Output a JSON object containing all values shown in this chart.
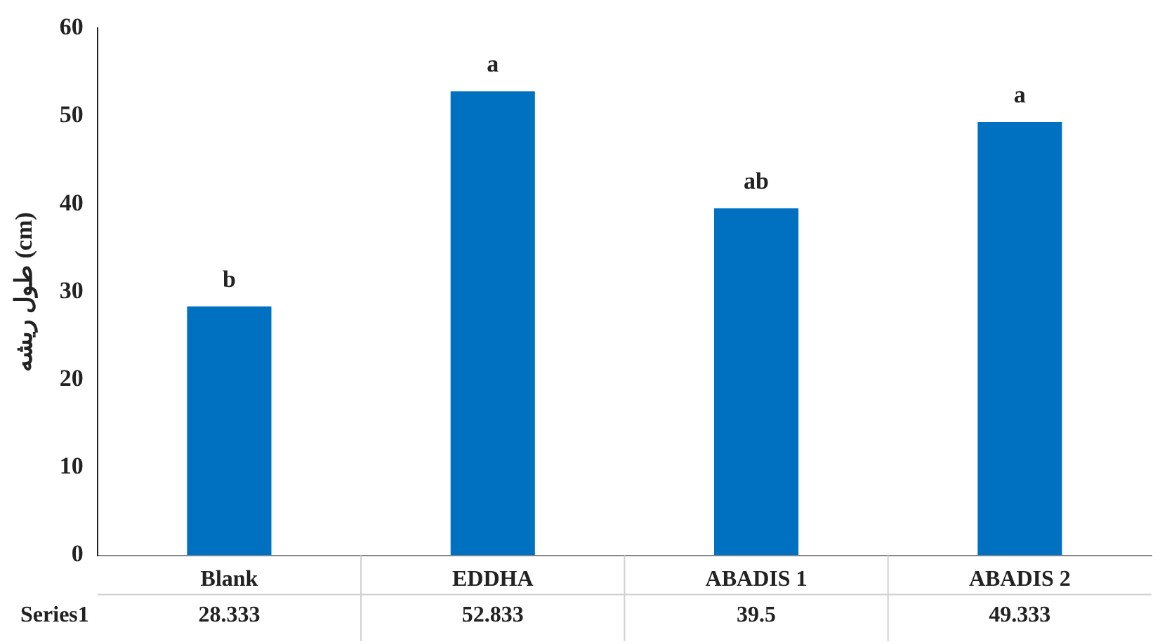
{
  "chart_data": {
    "type": "bar",
    "ylabel": "طول ریشه (cm)",
    "categories": [
      "Blank",
      "EDDHA",
      "ABADIS 1",
      "ABADIS 2"
    ],
    "series": [
      {
        "name": "Series1",
        "color": "#0070c0",
        "values": [
          28.333,
          52.833,
          39.5,
          49.333
        ]
      }
    ],
    "ylim": [
      0,
      60
    ],
    "yticks": [
      0,
      10,
      20,
      30,
      40,
      50,
      60
    ],
    "grid": false,
    "legend": false,
    "data_labels": true,
    "annotations": [
      {
        "text": "b",
        "x": "Blank",
        "y": 28.333
      },
      {
        "text": "a",
        "x": "EDDHA",
        "y": 52.833
      },
      {
        "text": "ab",
        "x": "ABADIS 1",
        "y": 39.5
      },
      {
        "text": "a",
        "x": "ABADIS 2",
        "y": 49.333
      }
    ]
  }
}
